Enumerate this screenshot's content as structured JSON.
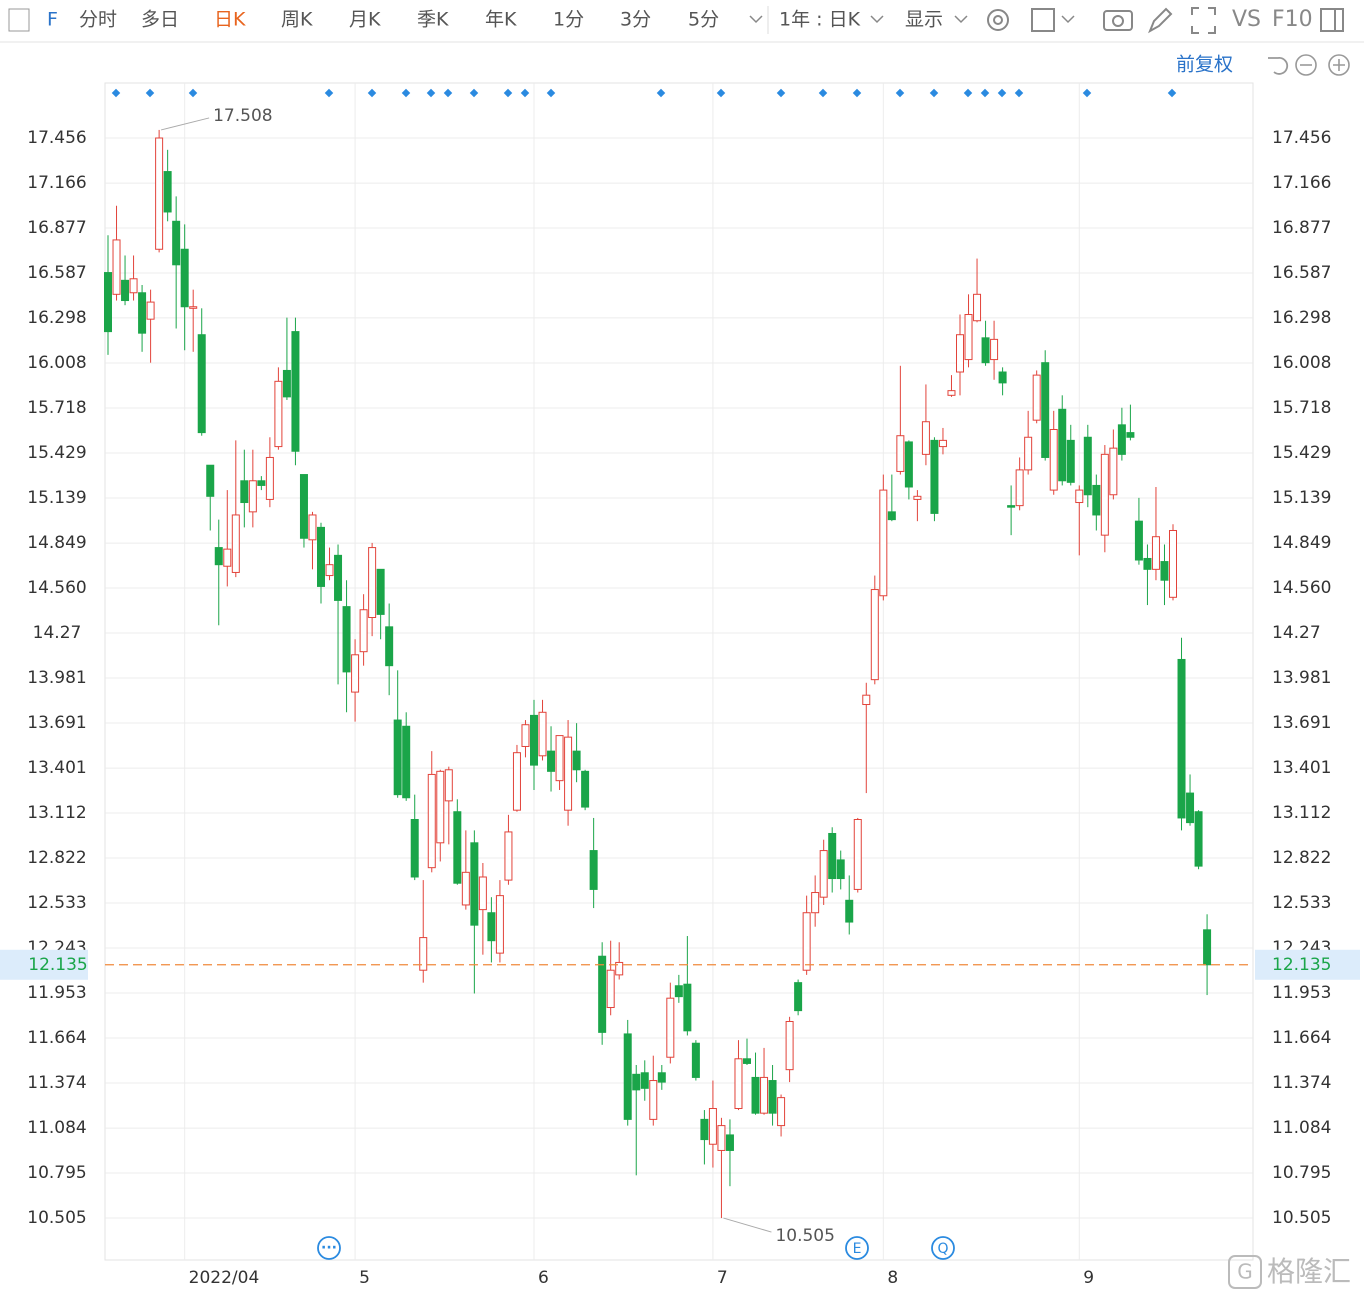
{
  "toolbar": {
    "symbol": "F",
    "tabs": [
      "分时",
      "多日",
      "日K",
      "周K",
      "月K",
      "季K",
      "年K",
      "1分",
      "3分",
      "5分"
    ],
    "active_tab": 2,
    "range": "1年 : 日K",
    "display": "显示",
    "vs": "VS",
    "f10": "F10"
  },
  "adjust": "前复权",
  "event_icons": [
    "E",
    "Q"
  ],
  "watermark": "格隆汇",
  "chart_data": {
    "type": "candlestick",
    "categories": [
      null,
      null,
      null,
      null,
      null,
      null,
      null,
      null,
      null,
      "2022/04",
      null,
      null,
      null,
      null,
      null,
      null,
      null,
      null,
      null,
      null,
      null,
      null,
      null,
      null,
      null,
      null,
      null,
      null,
      null,
      "5",
      null,
      null,
      null,
      null,
      null,
      null,
      null,
      null,
      null,
      null,
      null,
      null,
      null,
      null,
      null,
      null,
      null,
      null,
      null,
      null,
      "6",
      null,
      null,
      null,
      null,
      null,
      null,
      null,
      null,
      null,
      null,
      null,
      null,
      null,
      null,
      null,
      null,
      null,
      null,
      null,
      null,
      "7",
      null,
      null,
      null,
      null,
      null,
      null,
      null,
      null,
      null,
      null,
      null,
      null,
      null,
      null,
      null,
      null,
      null,
      null,
      null,
      "8",
      null,
      null,
      null,
      null,
      null,
      null,
      null,
      null,
      null,
      null,
      null,
      null,
      null,
      null,
      null,
      null,
      null,
      null,
      null,
      null,
      null,
      null,
      "9",
      null,
      null,
      null,
      null,
      null,
      null,
      null,
      null,
      null,
      null,
      null,
      null,
      null,
      null,
      null
    ],
    "ohlc": [
      [
        16.59,
        16.83,
        16.06,
        16.21
      ],
      [
        16.45,
        17.02,
        16.41,
        16.8
      ],
      [
        16.54,
        16.7,
        16.38,
        16.41
      ],
      [
        16.46,
        16.7,
        16.41,
        16.55
      ],
      [
        16.46,
        16.51,
        16.08,
        16.2
      ],
      [
        16.29,
        16.48,
        16.01,
        16.4
      ],
      [
        16.74,
        17.508,
        16.72,
        17.456
      ],
      [
        17.24,
        17.38,
        16.92,
        16.98
      ],
      [
        16.92,
        17.08,
        16.23,
        16.64
      ],
      [
        16.74,
        16.9,
        16.09,
        16.37
      ],
      [
        16.36,
        16.48,
        16.08,
        16.37
      ],
      [
        16.19,
        16.36,
        15.54,
        15.56
      ],
      [
        15.35,
        15.35,
        14.93,
        15.15
      ],
      [
        14.82,
        15,
        14.32,
        14.71
      ],
      [
        14.7,
        15.19,
        14.57,
        14.81
      ],
      [
        14.66,
        15.51,
        14.63,
        15.03
      ],
      [
        15.25,
        15.45,
        14.95,
        15.11
      ],
      [
        15.05,
        15.45,
        14.95,
        15.25
      ],
      [
        15.25,
        15.28,
        15.19,
        15.22
      ],
      [
        15.13,
        15.53,
        15.08,
        15.4
      ],
      [
        15.47,
        15.98,
        15.45,
        15.89
      ],
      [
        15.96,
        16.3,
        15.77,
        15.79
      ],
      [
        16.21,
        16.3,
        15.35,
        15.44
      ],
      [
        15.29,
        15.29,
        14.82,
        14.88
      ],
      [
        14.87,
        15.05,
        14.68,
        15.03
      ],
      [
        14.95,
        14.98,
        14.46,
        14.57
      ],
      [
        14.64,
        14.82,
        14.61,
        14.71
      ],
      [
        14.77,
        14.84,
        13.94,
        14.48
      ],
      [
        14.44,
        14.61,
        13.76,
        14.02
      ],
      [
        13.89,
        14.23,
        13.7,
        14.13
      ],
      [
        14.15,
        14.52,
        14.06,
        14.42
      ],
      [
        14.37,
        14.85,
        14.25,
        14.82
      ],
      [
        14.68,
        14.68,
        14.23,
        14.39
      ],
      [
        14.31,
        14.46,
        13.87,
        14.06
      ],
      [
        13.71,
        14.03,
        13.21,
        13.23
      ],
      [
        13.67,
        13.76,
        13.19,
        13.21
      ],
      [
        13.07,
        13.23,
        12.68,
        12.7
      ],
      [
        12.1,
        12.68,
        12.02,
        12.31
      ],
      [
        12.76,
        13.51,
        12.73,
        13.36
      ],
      [
        12.92,
        13.39,
        12.8,
        13.38
      ],
      [
        13.19,
        13.41,
        12.91,
        13.39
      ],
      [
        13.12,
        13.2,
        12.65,
        12.66
      ],
      [
        12.52,
        13,
        12.49,
        12.73
      ],
      [
        12.92,
        13,
        11.95,
        12.39
      ],
      [
        12.49,
        12.79,
        12.2,
        12.7
      ],
      [
        12.47,
        12.57,
        12.15,
        12.29
      ],
      [
        12.21,
        12.68,
        12.15,
        12.58
      ],
      [
        12.68,
        13.1,
        12.65,
        12.99
      ],
      [
        13.13,
        13.55,
        13.12,
        13.5
      ],
      [
        13.54,
        13.71,
        13.47,
        13.68
      ],
      [
        13.74,
        13.84,
        13.26,
        13.42
      ],
      [
        13.48,
        13.84,
        13.45,
        13.76
      ],
      [
        13.51,
        13.67,
        13.25,
        13.38
      ],
      [
        13.32,
        13.61,
        13.26,
        13.61
      ],
      [
        13.13,
        13.71,
        13.03,
        13.6
      ],
      [
        13.51,
        13.69,
        13.31,
        13.39
      ],
      [
        13.38,
        13.39,
        13.13,
        13.15
      ],
      [
        12.87,
        13.08,
        12.5,
        12.62
      ],
      [
        12.19,
        12.28,
        11.62,
        11.7
      ],
      [
        11.86,
        12.29,
        11.81,
        12.1
      ],
      [
        12.07,
        12.28,
        12.04,
        12.15
      ],
      [
        11.69,
        11.78,
        11.1,
        11.14
      ],
      [
        11.43,
        11.49,
        10.78,
        11.33
      ],
      [
        11.44,
        11.52,
        11.26,
        11.34
      ],
      [
        11.14,
        11.55,
        11.1,
        11.39
      ],
      [
        11.44,
        11.49,
        11.33,
        11.38
      ],
      [
        11.54,
        12.02,
        11.5,
        11.92
      ],
      [
        12,
        12.07,
        11.89,
        11.93
      ],
      [
        12.01,
        12.32,
        11.68,
        11.71
      ],
      [
        11.63,
        11.65,
        11.39,
        11.41
      ],
      [
        11.14,
        11.2,
        10.85,
        11.01
      ],
      [
        10.98,
        11.39,
        10.83,
        11.21
      ],
      [
        10.94,
        11.15,
        10.505,
        11.1
      ],
      [
        11.04,
        11.14,
        10.71,
        10.94
      ],
      [
        11.21,
        11.65,
        11.2,
        11.53
      ],
      [
        11.53,
        11.66,
        11.49,
        11.5
      ],
      [
        11.41,
        11.57,
        11.17,
        11.18
      ],
      [
        11.18,
        11.6,
        11.17,
        11.41
      ],
      [
        11.39,
        11.49,
        11.1,
        11.18
      ],
      [
        11.1,
        11.3,
        11.03,
        11.28
      ],
      [
        11.46,
        11.8,
        11.38,
        11.77
      ],
      [
        12.02,
        12.04,
        11.81,
        11.84
      ],
      [
        12.1,
        12.58,
        12.07,
        12.47
      ],
      [
        12.47,
        12.71,
        12.38,
        12.6
      ],
      [
        12.57,
        12.94,
        12.52,
        12.87
      ],
      [
        12.98,
        13.02,
        12.6,
        12.69
      ],
      [
        12.81,
        12.87,
        12.62,
        12.69
      ],
      [
        12.55,
        12.71,
        12.33,
        12.41
      ],
      [
        12.62,
        13.08,
        12.6,
        13.07
      ],
      [
        13.81,
        13.95,
        13.24,
        13.87
      ],
      [
        13.97,
        14.64,
        13.94,
        14.55
      ],
      [
        14.51,
        15.29,
        14.48,
        15.19
      ],
      [
        15.05,
        15.29,
        14.99,
        15
      ],
      [
        15.31,
        15.99,
        15.29,
        15.54
      ],
      [
        15.5,
        15.51,
        15.13,
        15.21
      ],
      [
        15.13,
        15.19,
        14.99,
        15.15
      ],
      [
        15.42,
        15.87,
        15.35,
        15.63
      ],
      [
        15.51,
        15.53,
        14.99,
        15.04
      ],
      [
        15.47,
        15.59,
        15.42,
        15.51
      ],
      [
        15.8,
        15.93,
        15.79,
        15.83
      ],
      [
        15.95,
        16.32,
        15.8,
        16.19
      ],
      [
        16.03,
        16.45,
        15.98,
        16.32
      ],
      [
        16.28,
        16.68,
        16.27,
        16.45
      ],
      [
        16.17,
        16.28,
        15.99,
        16.01
      ],
      [
        16.03,
        16.28,
        15.9,
        16.16
      ],
      [
        15.95,
        15.98,
        15.8,
        15.88
      ],
      [
        15.09,
        15.22,
        14.9,
        15.08
      ],
      [
        15.09,
        15.4,
        15.06,
        15.32
      ],
      [
        15.32,
        15.7,
        15.29,
        15.53
      ],
      [
        15.64,
        15.96,
        15.62,
        15.93
      ],
      [
        16.01,
        16.09,
        15.38,
        15.4
      ],
      [
        15.19,
        15.7,
        15.16,
        15.58
      ],
      [
        15.71,
        15.8,
        15.22,
        15.25
      ],
      [
        15.51,
        15.61,
        15.22,
        15.24
      ],
      [
        15.11,
        15.22,
        14.77,
        15.19
      ],
      [
        15.53,
        15.61,
        15.08,
        15.16
      ],
      [
        15.22,
        15.29,
        14.93,
        15.03
      ],
      [
        14.9,
        15.48,
        14.79,
        15.42
      ],
      [
        15.16,
        15.58,
        15.13,
        15.46
      ],
      [
        15.61,
        15.72,
        15.38,
        15.42
      ],
      [
        15.56,
        15.74,
        15.51,
        15.53
      ],
      [
        14.99,
        15.14,
        14.71,
        14.74
      ],
      [
        14.75,
        14.84,
        14.45,
        14.68
      ],
      [
        14.68,
        15.21,
        14.61,
        14.89
      ],
      [
        14.73,
        14.84,
        14.45,
        14.61
      ],
      [
        14.5,
        14.97,
        14.48,
        14.93
      ],
      [
        14.1,
        14.24,
        13,
        13.08
      ],
      [
        13.24,
        13.36,
        13.03,
        13.05
      ],
      [
        13.12,
        13.13,
        12.75,
        12.77
      ],
      [
        12.36,
        12.46,
        11.94,
        12.135
      ]
    ],
    "ylim": [
      10.235,
      17.81
    ],
    "yticks": [
      17.456,
      17.166,
      16.877,
      16.587,
      16.298,
      16.008,
      15.718,
      15.429,
      15.139,
      14.849,
      {
        "value": 14.56,
        "label": "14.560"
      },
      14.27,
      13.981,
      13.691,
      13.401,
      13.112,
      12.822,
      12.533,
      12.243,
      11.953,
      11.664,
      11.374,
      11.084,
      10.795,
      10.505
    ],
    "grid": true,
    "up_color": "#e2433a",
    "down_color": "#1aa549",
    "last_line_color": "#f08a3c"
  }
}
